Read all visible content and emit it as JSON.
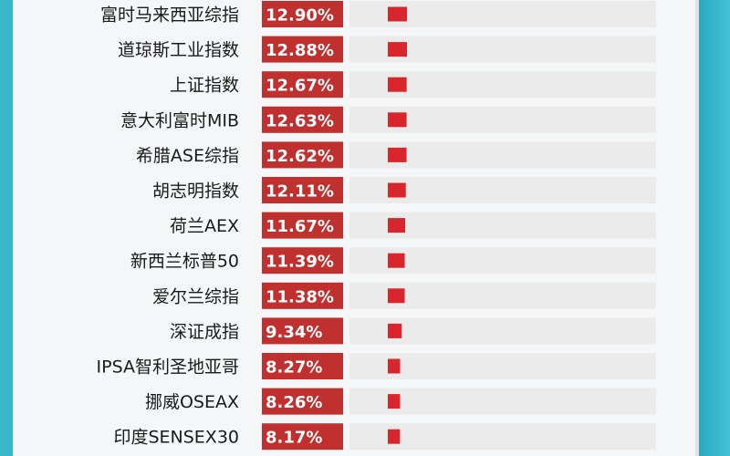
{
  "colors": {
    "background": "#2aa9c1",
    "panel": "#f4f6f7",
    "value_box": "#c0302e",
    "bar": "#d9262c",
    "track": "#ebebeb"
  },
  "chart_data": {
    "type": "bar",
    "orientation": "horizontal",
    "unit": "%",
    "categories": [
      "富时马来西亚综指",
      "道琼斯工业指数",
      "上证指数",
      "意大利富时MIB",
      "希腊ASE综指",
      "胡志明指数",
      "荷兰AEX",
      "新西兰标普50",
      "爱尔兰综指",
      "深证成指",
      "IPSA智利圣地亚哥",
      "挪威OSEAX",
      "印度SENSEX30"
    ],
    "values": [
      12.9,
      12.88,
      12.67,
      12.63,
      12.62,
      12.11,
      11.67,
      11.39,
      11.38,
      9.34,
      8.27,
      8.26,
      8.17
    ],
    "value_labels": [
      "12.90%",
      "12.88%",
      "12.67%",
      "12.63%",
      "12.62%",
      "12.11%",
      "11.67%",
      "11.39%",
      "11.38%",
      "9.34%",
      "8.27%",
      "8.26%",
      "8.17%"
    ],
    "xlim": [
      0,
      100
    ],
    "grid": false,
    "legend": "none"
  }
}
